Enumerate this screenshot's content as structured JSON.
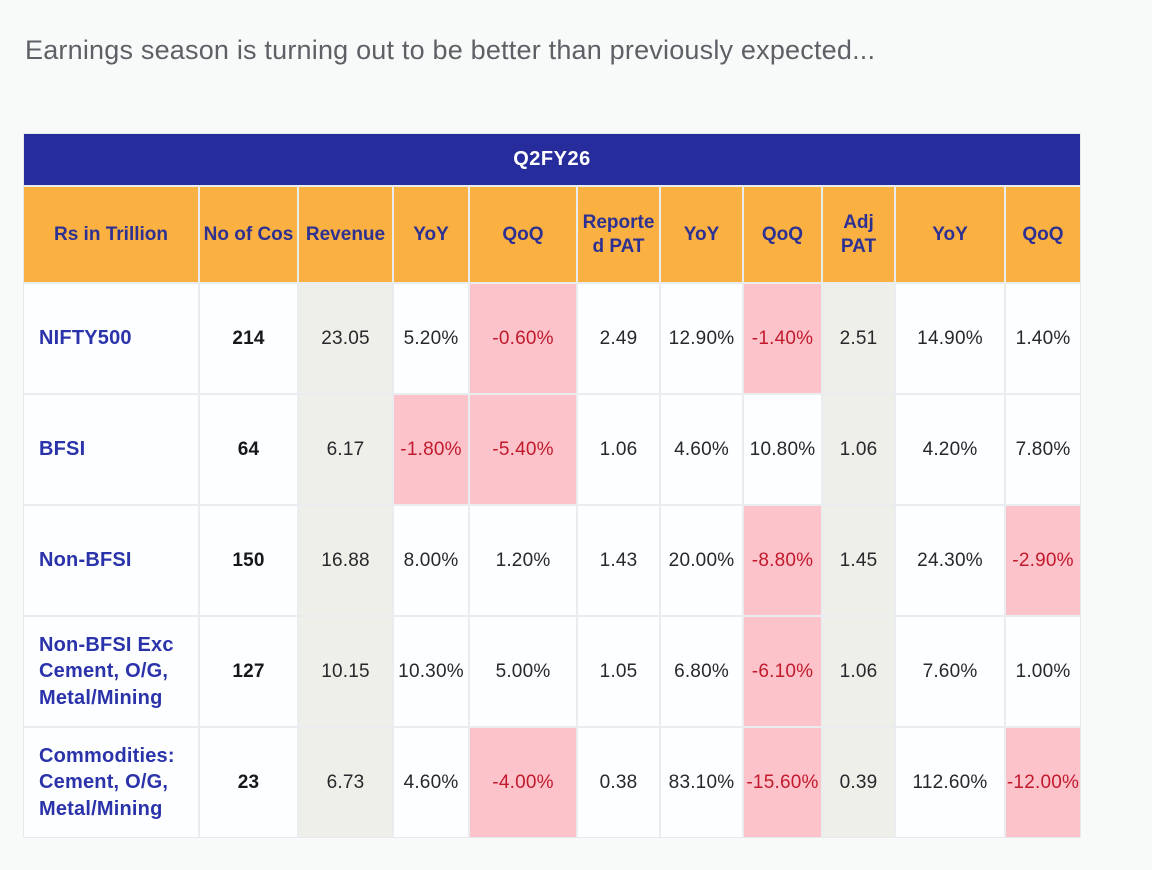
{
  "page": {
    "title": "Earnings season is turning out to be better than previously expected..."
  },
  "colors": {
    "page_background": "#F8FAFA",
    "heading_text": "#5D6165",
    "table_title_bg": "#272C9C",
    "table_title_text": "#FFFFFF",
    "header_bg": "#FBB042",
    "header_text": "#2D3192",
    "row_label_text": "#2B33AB",
    "shaded_column_bg": "#EFEFE9",
    "negative_cell_bg": "#FDC3CB",
    "negative_cell_text": "#C11A2D",
    "cell_text": "#26282B"
  },
  "table": {
    "header": "Q2FY26",
    "columns": [
      "Rs in Trillion",
      "No of Cos",
      "Revenue",
      "YoY",
      "QoQ",
      "Reported PAT",
      "YoY",
      "QoQ",
      "Adj PAT",
      "YoY",
      "QoQ"
    ],
    "rows": [
      {
        "label": "NIFTY500",
        "cells": [
          {
            "value": "214",
            "bold": true
          },
          {
            "value": "23.05",
            "shade": true
          },
          {
            "value": "5.20%"
          },
          {
            "value": "-0.60%",
            "neg": true
          },
          {
            "value": "2.49"
          },
          {
            "value": "12.90%"
          },
          {
            "value": "-1.40%",
            "neg": true
          },
          {
            "value": "2.51",
            "shade": true
          },
          {
            "value": "14.90%"
          },
          {
            "value": "1.40%"
          }
        ]
      },
      {
        "label": "BFSI",
        "cells": [
          {
            "value": "64",
            "bold": true
          },
          {
            "value": "6.17",
            "shade": true
          },
          {
            "value": "-1.80%",
            "neg": true
          },
          {
            "value": "-5.40%",
            "neg": true
          },
          {
            "value": "1.06"
          },
          {
            "value": "4.60%"
          },
          {
            "value": "10.80%"
          },
          {
            "value": "1.06",
            "shade": true
          },
          {
            "value": "4.20%"
          },
          {
            "value": "7.80%"
          }
        ]
      },
      {
        "label": "Non-BFSI",
        "cells": [
          {
            "value": "150",
            "bold": true
          },
          {
            "value": "16.88",
            "shade": true
          },
          {
            "value": "8.00%"
          },
          {
            "value": "1.20%"
          },
          {
            "value": "1.43"
          },
          {
            "value": "20.00%"
          },
          {
            "value": "-8.80%",
            "neg": true
          },
          {
            "value": "1.45",
            "shade": true
          },
          {
            "value": "24.30%"
          },
          {
            "value": "-2.90%",
            "neg": true
          }
        ]
      },
      {
        "label": "Non-BFSI Exc Cement, O/G, Metal/Mining",
        "cells": [
          {
            "value": "127",
            "bold": true
          },
          {
            "value": "10.15",
            "shade": true
          },
          {
            "value": "10.30%"
          },
          {
            "value": "5.00%"
          },
          {
            "value": "1.05"
          },
          {
            "value": "6.80%"
          },
          {
            "value": "-6.10%",
            "neg": true
          },
          {
            "value": "1.06",
            "shade": true
          },
          {
            "value": "7.60%"
          },
          {
            "value": "1.00%"
          }
        ]
      },
      {
        "label": "Commodities: Cement, O/G, Metal/Mining",
        "cells": [
          {
            "value": "23",
            "bold": true
          },
          {
            "value": "6.73",
            "shade": true
          },
          {
            "value": "4.60%"
          },
          {
            "value": "-4.00%",
            "neg": true
          },
          {
            "value": "0.38"
          },
          {
            "value": "83.10%"
          },
          {
            "value": "-15.60%",
            "neg": true
          },
          {
            "value": "0.39",
            "shade": true
          },
          {
            "value": "112.60%"
          },
          {
            "value": "-12.00%",
            "neg": true
          }
        ]
      }
    ]
  },
  "chart_data": {
    "type": "table",
    "title": "Q2FY26",
    "units": "Rs in Trillion",
    "columns": [
      "Rs in Trillion",
      "No of Cos",
      "Revenue",
      "YoY",
      "QoQ",
      "Reported PAT",
      "YoY",
      "QoQ",
      "Adj PAT",
      "YoY",
      "QoQ"
    ],
    "rows": [
      [
        "NIFTY500",
        214,
        23.05,
        "5.20%",
        "-0.60%",
        2.49,
        "12.90%",
        "-1.40%",
        2.51,
        "14.90%",
        "1.40%"
      ],
      [
        "BFSI",
        64,
        6.17,
        "-1.80%",
        "-5.40%",
        1.06,
        "4.60%",
        "10.80%",
        1.06,
        "4.20%",
        "7.80%"
      ],
      [
        "Non-BFSI",
        150,
        16.88,
        "8.00%",
        "1.20%",
        1.43,
        "20.00%",
        "-8.80%",
        1.45,
        "24.30%",
        "-2.90%"
      ],
      [
        "Non-BFSI Exc Cement, O/G, Metal/Mining",
        127,
        10.15,
        "10.30%",
        "5.00%",
        1.05,
        "6.80%",
        "-6.10%",
        1.06,
        "7.60%",
        "1.00%"
      ],
      [
        "Commodities: Cement, O/G, Metal/Mining",
        23,
        6.73,
        "4.60%",
        "-4.00%",
        0.38,
        "83.10%",
        "-15.60%",
        0.39,
        "112.60%",
        "-12.00%"
      ]
    ],
    "layout_hints": {
      "negative_values_highlighted": "pink background, red text",
      "shaded_columns": [
        "Revenue",
        "Adj PAT"
      ],
      "title_row": "navy blue full-width band",
      "header_row": "orange background, navy text"
    }
  }
}
